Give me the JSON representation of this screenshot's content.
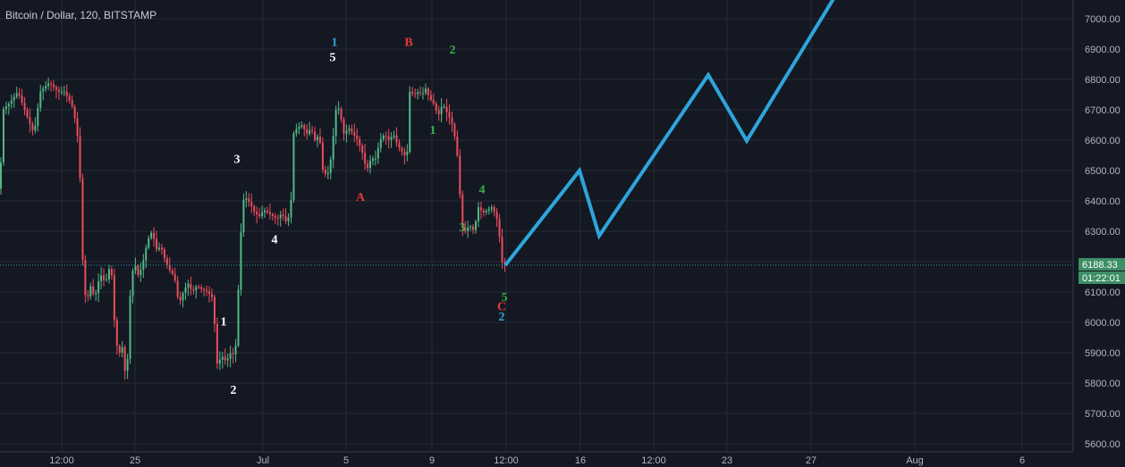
{
  "header": {
    "title": "Bitcoin / Dollar, 120, BITSTAMP"
  },
  "colors": {
    "background": "#141823",
    "grid": "#252a36",
    "up": "#53b987",
    "down": "#eb4d5c",
    "projection": "#2ea6dc",
    "price_line": "#26a69a",
    "badge": "#3e8e65",
    "wave_white": "#ffffff",
    "wave_green": "#3cb04a",
    "wave_red": "#e53935",
    "wave_blue": "#2ea6dc"
  },
  "chart_data": {
    "type": "candlestick",
    "title": "Bitcoin / Dollar, 120, BITSTAMP",
    "y_axis": {
      "ylim": [
        5550,
        7080
      ],
      "ticks": [
        5600,
        5700,
        5800,
        5900,
        6000,
        6100,
        6200,
        6300,
        6400,
        6500,
        6600,
        6700,
        6800,
        6900,
        7000
      ],
      "tick_labels": [
        "5600.00",
        "5700.00",
        "5800.00",
        "5900.00",
        "6000.00",
        "6100.00",
        "6200.00",
        "6300.00",
        "6400.00",
        "6500.00",
        "6600.00",
        "6700.00",
        "6800.00",
        "6900.00",
        "7000.00"
      ]
    },
    "x_axis": {
      "tick_labels": [
        "12:00",
        "25",
        "Jul",
        "5",
        "9",
        "12:00",
        "16",
        "12:00",
        "23",
        "27",
        "Aug",
        "6"
      ]
    },
    "grid": true,
    "current_price": {
      "value": 6188.33,
      "label": "6188.33",
      "countdown": "01:22:01"
    },
    "price_path": [
      [
        0,
        6440
      ],
      [
        3,
        6700
      ],
      [
        10,
        6720
      ],
      [
        20,
        6760
      ],
      [
        30,
        6680
      ],
      [
        38,
        6620
      ],
      [
        45,
        6760
      ],
      [
        55,
        6790
      ],
      [
        65,
        6760
      ],
      [
        72,
        6760
      ],
      [
        80,
        6720
      ],
      [
        86,
        6640
      ],
      [
        90,
        6450
      ],
      [
        93,
        6150
      ],
      [
        97,
        6050
      ],
      [
        100,
        6130
      ],
      [
        106,
        6080
      ],
      [
        112,
        6160
      ],
      [
        118,
        6130
      ],
      [
        124,
        6200
      ],
      [
        128,
        6000
      ],
      [
        132,
        5890
      ],
      [
        137,
        5920
      ],
      [
        141,
        5800
      ],
      [
        143,
        5900
      ],
      [
        146,
        6120
      ],
      [
        150,
        6200
      ],
      [
        155,
        6150
      ],
      [
        160,
        6200
      ],
      [
        165,
        6270
      ],
      [
        170,
        6300
      ],
      [
        175,
        6240
      ],
      [
        180,
        6250
      ],
      [
        185,
        6200
      ],
      [
        190,
        6170
      ],
      [
        195,
        6150
      ],
      [
        200,
        6060
      ],
      [
        205,
        6100
      ],
      [
        210,
        6130
      ],
      [
        215,
        6100
      ],
      [
        220,
        6120
      ],
      [
        225,
        6110
      ],
      [
        232,
        6100
      ],
      [
        238,
        6080
      ],
      [
        243,
        5860
      ],
      [
        248,
        5890
      ],
      [
        253,
        5870
      ],
      [
        258,
        5900
      ],
      [
        263,
        5890
      ],
      [
        268,
        6200
      ],
      [
        271,
        6400
      ],
      [
        275,
        6410
      ],
      [
        280,
        6390
      ],
      [
        285,
        6360
      ],
      [
        290,
        6350
      ],
      [
        295,
        6370
      ],
      [
        300,
        6360
      ],
      [
        305,
        6350
      ],
      [
        310,
        6340
      ],
      [
        315,
        6360
      ],
      [
        320,
        6330
      ],
      [
        325,
        6360
      ],
      [
        328,
        6620
      ],
      [
        332,
        6640
      ],
      [
        338,
        6650
      ],
      [
        343,
        6620
      ],
      [
        348,
        6640
      ],
      [
        352,
        6600
      ],
      [
        357,
        6620
      ],
      [
        361,
        6500
      ],
      [
        366,
        6480
      ],
      [
        370,
        6540
      ],
      [
        374,
        6650
      ],
      [
        376,
        6710
      ],
      [
        380,
        6700
      ],
      [
        384,
        6620
      ],
      [
        390,
        6640
      ],
      [
        395,
        6620
      ],
      [
        400,
        6600
      ],
      [
        405,
        6560
      ],
      [
        410,
        6500
      ],
      [
        415,
        6540
      ],
      [
        420,
        6540
      ],
      [
        425,
        6600
      ],
      [
        430,
        6620
      ],
      [
        435,
        6600
      ],
      [
        440,
        6620
      ],
      [
        445,
        6580
      ],
      [
        450,
        6560
      ],
      [
        455,
        6540
      ],
      [
        458,
        6760
      ],
      [
        463,
        6750
      ],
      [
        468,
        6760
      ],
      [
        472,
        6750
      ],
      [
        476,
        6770
      ],
      [
        480,
        6740
      ],
      [
        485,
        6720
      ],
      [
        490,
        6680
      ],
      [
        495,
        6720
      ],
      [
        500,
        6690
      ],
      [
        505,
        6660
      ],
      [
        510,
        6590
      ],
      [
        513,
        6500
      ],
      [
        516,
        6320
      ],
      [
        520,
        6300
      ],
      [
        525,
        6320
      ],
      [
        530,
        6300
      ],
      [
        535,
        6380
      ],
      [
        540,
        6360
      ],
      [
        545,
        6370
      ],
      [
        550,
        6380
      ],
      [
        555,
        6350
      ],
      [
        558,
        6300
      ],
      [
        561,
        6200
      ],
      [
        565,
        6188
      ]
    ],
    "projection": [
      [
        565,
        6188
      ],
      [
        648,
        6500
      ],
      [
        670,
        6285
      ],
      [
        792,
        6815
      ],
      [
        835,
        6598
      ],
      [
        935,
        7080
      ]
    ],
    "wave_labels": [
      {
        "text": "3",
        "x": 265,
        "y": 6540,
        "color": "wave_white"
      },
      {
        "text": "4",
        "x": 307,
        "y": 6275,
        "color": "wave_white"
      },
      {
        "text": "1",
        "x": 250,
        "y": 6005,
        "color": "wave_white"
      },
      {
        "text": "2",
        "x": 261,
        "y": 5780,
        "color": "wave_white"
      },
      {
        "text": "1",
        "x": 374,
        "y": 6925,
        "color": "wave_blue"
      },
      {
        "text": "5",
        "x": 372,
        "y": 6875,
        "color": "wave_white"
      },
      {
        "text": "A",
        "x": 403,
        "y": 6415,
        "color": "wave_red"
      },
      {
        "text": "B",
        "x": 457,
        "y": 6925,
        "color": "wave_red"
      },
      {
        "text": "2",
        "x": 506,
        "y": 6900,
        "color": "wave_green"
      },
      {
        "text": "1",
        "x": 484,
        "y": 6635,
        "color": "wave_green"
      },
      {
        "text": "3",
        "x": 517,
        "y": 6315,
        "color": "wave_green"
      },
      {
        "text": "4",
        "x": 539,
        "y": 6440,
        "color": "wave_green"
      },
      {
        "text": "5",
        "x": 564,
        "y": 6085,
        "color": "wave_green"
      },
      {
        "text": "C",
        "x": 561,
        "y": 6055,
        "color": "wave_red"
      },
      {
        "text": "2",
        "x": 561,
        "y": 6020,
        "color": "wave_blue"
      }
    ]
  }
}
